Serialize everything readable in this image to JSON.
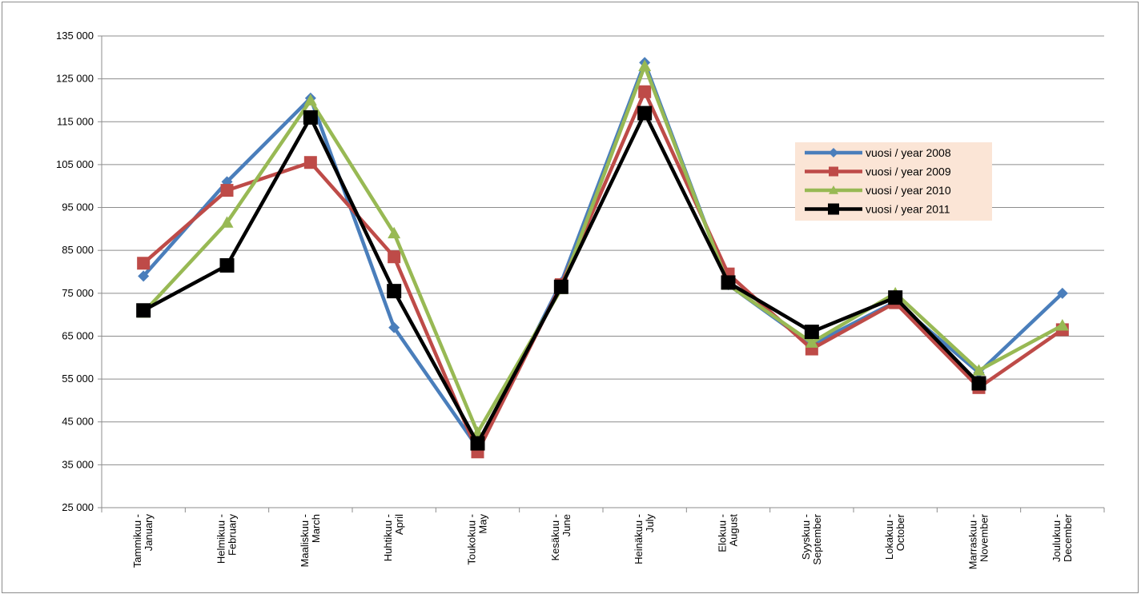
{
  "chart_data": {
    "type": "line",
    "title": "",
    "xlabel": "",
    "ylabel": "",
    "ylim": [
      25000,
      135000
    ],
    "yticks": [
      25000,
      35000,
      45000,
      55000,
      65000,
      75000,
      85000,
      95000,
      105000,
      115000,
      125000,
      135000
    ],
    "ytick_labels": [
      "25 000",
      "35 000",
      "45 000",
      "55 000",
      "65 000",
      "75 000",
      "85 000",
      "95 000",
      "105 000",
      "115 000",
      "125 000",
      "135 000"
    ],
    "grid": true,
    "legend_position": "right",
    "categories": [
      [
        "Tammikuu -",
        "January"
      ],
      [
        "Helmikuu -",
        "February"
      ],
      [
        "Maaliskuu -",
        "March"
      ],
      [
        "Huhtikuu -",
        "April"
      ],
      [
        "Toukokuu -",
        "May"
      ],
      [
        "Kesäkuu -",
        "June"
      ],
      [
        "Heinäkuu -",
        "July"
      ],
      [
        "Elokuu -",
        "August"
      ],
      [
        "Syyskuu -",
        "September"
      ],
      [
        "Lokakuu -",
        "October"
      ],
      [
        "Marraskuu -",
        "November"
      ],
      [
        "Joulukuu -",
        "December"
      ]
    ],
    "series": [
      {
        "name": "vuosi / year 2008",
        "color": "#4a7ebb",
        "marker": "diamond",
        "values": [
          79000,
          101000,
          120500,
          67000,
          39000,
          77500,
          128800,
          77000,
          63000,
          73000,
          56500,
          75000
        ]
      },
      {
        "name": "vuosi / year 2009",
        "color": "#be4b48",
        "marker": "square",
        "values": [
          82000,
          99000,
          105500,
          83500,
          38000,
          77000,
          122000,
          79500,
          62000,
          72800,
          53000,
          66500
        ]
      },
      {
        "name": "vuosi / year 2010",
        "color": "#98b954",
        "marker": "triangle",
        "values": [
          70500,
          91500,
          120000,
          89000,
          42500,
          76000,
          128000,
          77000,
          63500,
          75000,
          57000,
          67500
        ]
      },
      {
        "name": "vuosi / year 2011",
        "color": "#000000",
        "marker": "square",
        "values": [
          71000,
          81500,
          116000,
          75500,
          40000,
          76500,
          117000,
          77500,
          66000,
          74000,
          54000,
          null
        ]
      }
    ]
  }
}
